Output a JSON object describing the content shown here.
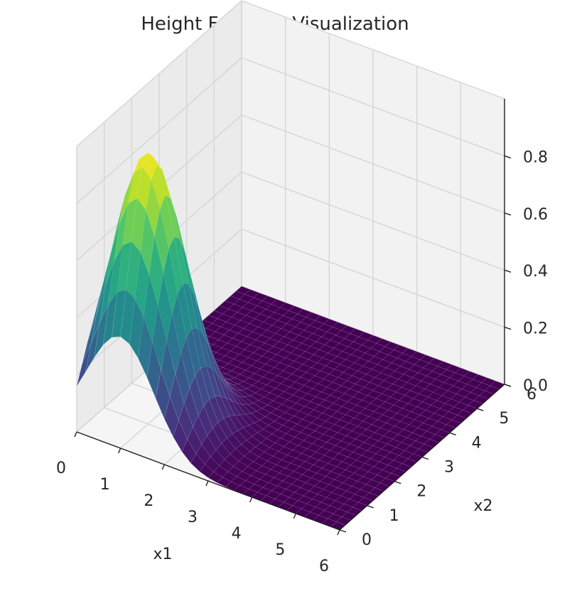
{
  "chart_data": {
    "type": "surface3d",
    "title": "Height Function Visualization",
    "xlabel": "x1",
    "ylabel": "x2",
    "zlabel": "",
    "xlim": [
      0,
      6
    ],
    "ylim": [
      0,
      6
    ],
    "zlim": [
      0,
      1
    ],
    "x_ticks": [
      "0",
      "1",
      "2",
      "3",
      "4",
      "5",
      "6"
    ],
    "y_ticks": [
      "0",
      "1",
      "2",
      "3",
      "4",
      "5",
      "6"
    ],
    "z_ticks": [
      "0.0",
      "0.2",
      "0.4",
      "0.6",
      "0.8"
    ],
    "x_tick_values": [
      0,
      1,
      2,
      3,
      4,
      5,
      6
    ],
    "y_tick_values": [
      0,
      1,
      2,
      3,
      4,
      5,
      6
    ],
    "z_tick_values": [
      0,
      0.2,
      0.4,
      0.6,
      0.8
    ],
    "grid": true,
    "colormap": "viridis",
    "surface": {
      "function": "gaussian",
      "peak": 0.95,
      "center": [
        1,
        1
      ],
      "sigma": 0.75,
      "samples": 31
    }
  }
}
